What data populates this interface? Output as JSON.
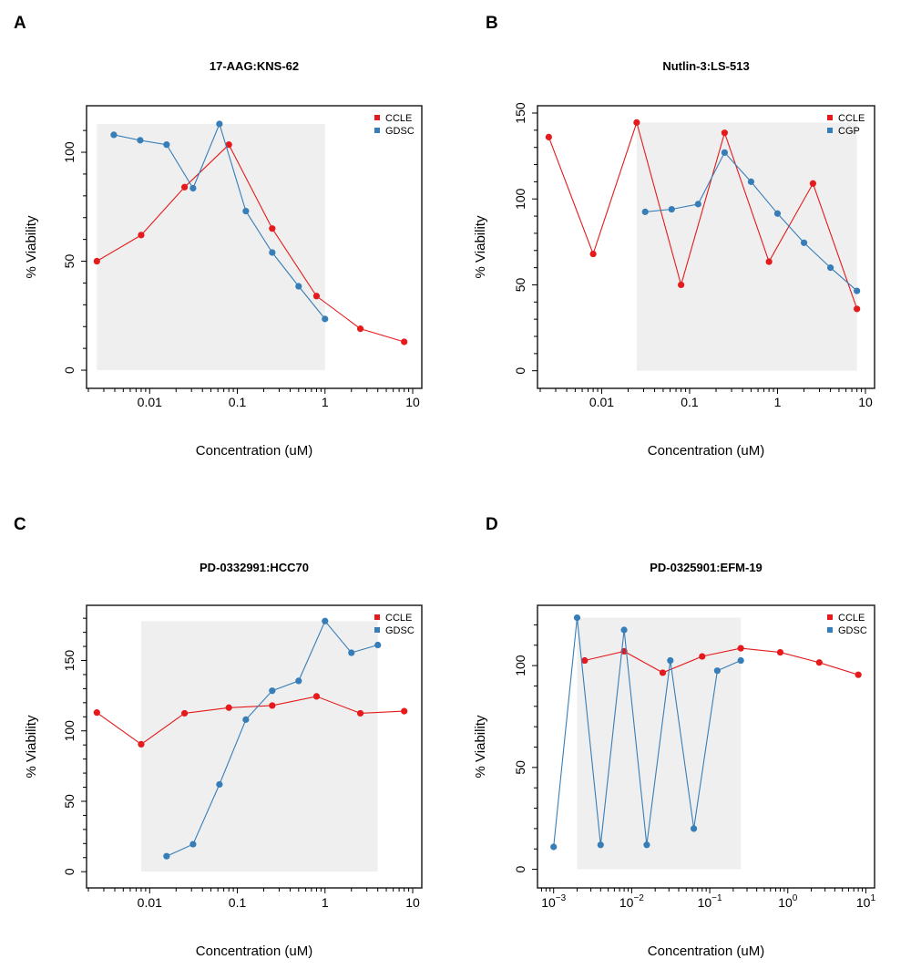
{
  "chart_data": [
    {
      "panel": "A",
      "type": "line",
      "title": "17-AAG:KNS-62",
      "xlabel": "Concentration (uM)",
      "ylabel": "% Viability",
      "xscale": "log",
      "xlim": [
        0.0022,
        11
      ],
      "ylim": [
        -5,
        118
      ],
      "x_tick_labels": [
        "0.01",
        "0.1",
        "1",
        "10"
      ],
      "x_tick_values": [
        0.01,
        0.1,
        1,
        10
      ],
      "y_tick_labels": [
        "0",
        "50",
        "100"
      ],
      "y_tick_values": [
        0,
        50,
        100
      ],
      "legend": {
        "position": "top-right",
        "entries": [
          "CCLE",
          "GDSC"
        ]
      },
      "shaded_region": {
        "x": [
          0.0025,
          1
        ],
        "y": [
          0,
          113
        ]
      },
      "series": [
        {
          "name": "CCLE",
          "color": "#e41a1c",
          "x": [
            0.0025,
            0.008,
            0.025,
            0.08,
            0.25,
            0.8,
            2.53,
            8
          ],
          "y": [
            50,
            62,
            84,
            103.5,
            65,
            34,
            19,
            13
          ]
        },
        {
          "name": "GDSC",
          "color": "#377eb8",
          "x": [
            0.0039,
            0.0078,
            0.0156,
            0.03125,
            0.0625,
            0.125,
            0.25,
            0.5,
            1
          ],
          "y": [
            108,
            105.5,
            103.5,
            83.5,
            113,
            73,
            54,
            38.5,
            23.5
          ]
        }
      ]
    },
    {
      "panel": "B",
      "type": "line",
      "title": "Nutlin-3:LS-513",
      "xlabel": "Concentration (uM)",
      "ylabel": "% Viability",
      "xscale": "log",
      "xlim": [
        0.0022,
        11
      ],
      "ylim": [
        -6,
        150
      ],
      "x_tick_labels": [
        "0.01",
        "0.1",
        "1",
        "10"
      ],
      "x_tick_values": [
        0.01,
        0.1,
        1,
        10
      ],
      "y_tick_labels": [
        "0",
        "50",
        "100",
        "150"
      ],
      "y_tick_values": [
        0,
        50,
        100,
        150
      ],
      "legend": {
        "position": "top-right",
        "entries": [
          "CCLE",
          "CGP"
        ]
      },
      "shaded_region": {
        "x": [
          0.025,
          8
        ],
        "y": [
          0,
          144.5
        ]
      },
      "series": [
        {
          "name": "CCLE",
          "color": "#e41a1c",
          "x": [
            0.0025,
            0.008,
            0.025,
            0.08,
            0.25,
            0.8,
            2.53,
            8
          ],
          "y": [
            136,
            68,
            144.5,
            50,
            138.5,
            63.5,
            109,
            36
          ]
        },
        {
          "name": "CGP",
          "color": "#377eb8",
          "x": [
            0.03125,
            0.0625,
            0.125,
            0.25,
            0.5,
            1,
            2,
            4,
            8
          ],
          "y": [
            92.5,
            94,
            97,
            127,
            110,
            91.5,
            74.5,
            60,
            46.5
          ]
        }
      ]
    },
    {
      "panel": "C",
      "type": "line",
      "title": "PD-0332991:HCC70",
      "xlabel": "Concentration (uM)",
      "ylabel": "% Viability",
      "xscale": "log",
      "xlim": [
        0.0022,
        11
      ],
      "ylim": [
        -7,
        184
      ],
      "x_tick_labels": [
        "0.01",
        "0.1",
        "1",
        "10"
      ],
      "x_tick_values": [
        0.01,
        0.1,
        1,
        10
      ],
      "y_tick_labels": [
        "0",
        "50",
        "100",
        "150"
      ],
      "y_tick_values": [
        0,
        50,
        100,
        150
      ],
      "legend": {
        "position": "top-right",
        "entries": [
          "CCLE",
          "GDSC"
        ]
      },
      "shaded_region": {
        "x": [
          0.008,
          4
        ],
        "y": [
          0,
          178
        ]
      },
      "series": [
        {
          "name": "CCLE",
          "color": "#e41a1c",
          "x": [
            0.0025,
            0.008,
            0.025,
            0.08,
            0.25,
            0.8,
            2.53,
            8
          ],
          "y": [
            113,
            90.5,
            112.5,
            116.5,
            118,
            124.5,
            112.5,
            114
          ]
        },
        {
          "name": "GDSC",
          "color": "#377eb8",
          "x": [
            0.0156,
            0.03125,
            0.0625,
            0.125,
            0.25,
            0.5,
            1,
            2,
            4
          ],
          "y": [
            11,
            19.5,
            62,
            108,
            128.5,
            135.5,
            178,
            155.5,
            161
          ]
        }
      ]
    },
    {
      "panel": "D",
      "type": "line",
      "title": "PD-0325901:EFM-19",
      "xlabel": "Concentration (uM)",
      "ylabel": "% Viability",
      "xscale": "log",
      "xlim": [
        0.00075,
        11
      ],
      "ylim": [
        -6,
        126
      ],
      "x_tick_labels": [
        {
          "base": "10",
          "exp": "-3"
        },
        {
          "base": "10",
          "exp": "-2"
        },
        {
          "base": "10",
          "exp": "-1"
        },
        {
          "base": "10",
          "exp": "0"
        },
        {
          "base": "10",
          "exp": "1"
        }
      ],
      "x_tick_values": [
        0.001,
        0.01,
        0.1,
        1,
        10
      ],
      "y_tick_labels": [
        "0",
        "50",
        "100"
      ],
      "y_tick_values": [
        0,
        50,
        100
      ],
      "legend": {
        "position": "top-right",
        "entries": [
          "CCLE",
          "GDSC"
        ]
      },
      "shaded_region": {
        "x": [
          0.002,
          0.25
        ],
        "y": [
          0,
          123.5
        ]
      },
      "series": [
        {
          "name": "CCLE",
          "color": "#e41a1c",
          "x": [
            0.0025,
            0.008,
            0.025,
            0.08,
            0.25,
            0.8,
            2.53,
            8
          ],
          "y": [
            102.5,
            107,
            96.5,
            104.5,
            108.5,
            106.5,
            101.5,
            95.5
          ]
        },
        {
          "name": "GDSC",
          "color": "#377eb8",
          "x": [
            0.001,
            0.002,
            0.004,
            0.008,
            0.0156,
            0.03125,
            0.0625,
            0.125,
            0.25
          ],
          "y": [
            11,
            123.5,
            12,
            117.5,
            12,
            102.5,
            20,
            97.5,
            102.5
          ]
        }
      ]
    }
  ],
  "panel_letters": [
    "A",
    "B",
    "C",
    "D"
  ],
  "colors": {
    "shade": "#efefef",
    "frame": "#222222"
  }
}
